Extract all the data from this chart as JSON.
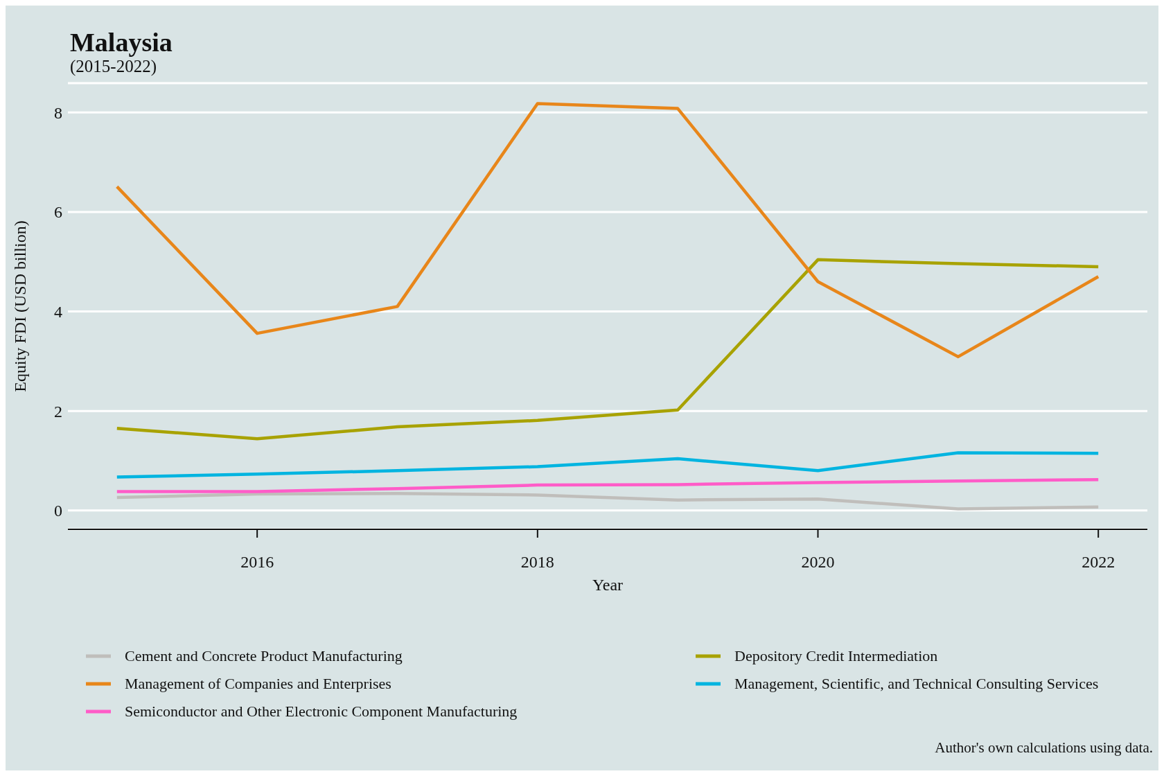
{
  "chart_data": {
    "type": "line",
    "title": "Malaysia",
    "subtitle": "(2015-2022)",
    "xlabel": "Year",
    "ylabel": "Equity FDI (USD billion)",
    "x": [
      2015,
      2016,
      2017,
      2018,
      2019,
      2020,
      2021,
      2022
    ],
    "xlim": [
      2014.65,
      2022.35
    ],
    "xticks": [
      2016,
      2018,
      2020,
      2022
    ],
    "ylim": [
      -0.38,
      8.59
    ],
    "yticks": [
      0,
      2,
      4,
      6,
      8
    ],
    "grid": "y",
    "legend": "bottom",
    "marker": "none",
    "line_style": "solid",
    "series": [
      {
        "name": "Cement and Concrete Product Manufacturing",
        "color": "#c0bebb",
        "values": [
          0.26,
          0.33,
          0.34,
          0.31,
          0.21,
          0.23,
          0.03,
          0.07
        ]
      },
      {
        "name": "Depository Credit Intermediation",
        "color": "#a8a200",
        "values": [
          1.65,
          1.44,
          1.68,
          1.81,
          2.02,
          5.04,
          4.96,
          4.9
        ]
      },
      {
        "name": "Management of Companies and Enterprises",
        "color": "#e8861a",
        "values": [
          6.51,
          3.56,
          4.1,
          8.18,
          8.08,
          4.6,
          3.09,
          4.7
        ]
      },
      {
        "name": "Management, Scientific, and Technical Consulting Services",
        "color": "#00b4e0",
        "values": [
          0.67,
          0.73,
          0.8,
          0.88,
          1.04,
          0.8,
          1.16,
          1.15
        ]
      },
      {
        "name": "Semiconductor and Other Electronic Component Manufacturing",
        "color": "#ff5cc8",
        "values": [
          0.38,
          0.38,
          0.44,
          0.51,
          0.52,
          0.56,
          0.59,
          0.62
        ]
      }
    ],
    "annotations": [
      "Author's own calculations using data."
    ]
  }
}
